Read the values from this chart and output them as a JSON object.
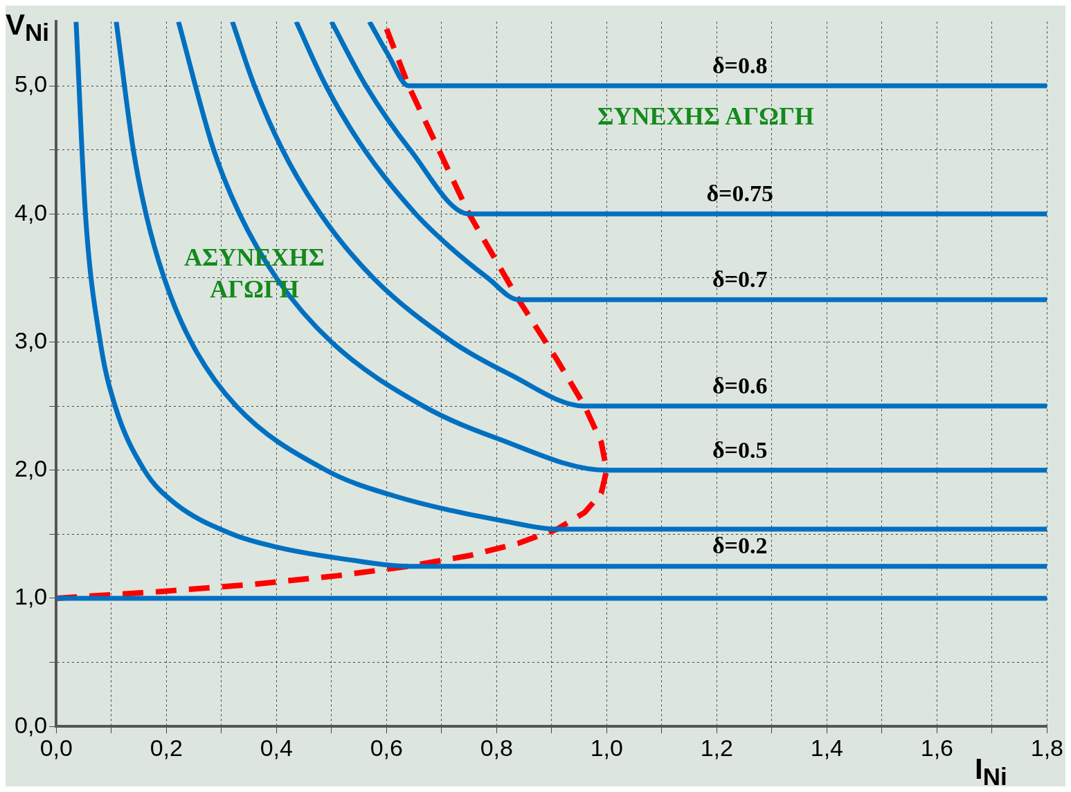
{
  "chart_data": {
    "type": "line",
    "xlabel": "I$_{Ni}$",
    "ylabel": "V$_{Ni}$",
    "xlim": [
      0,
      1.8
    ],
    "ylim": [
      0,
      5.5
    ],
    "xticks": [
      {
        "value": 0,
        "label": "0,0"
      },
      {
        "value": 0.1,
        "label": null
      },
      {
        "value": 0.2,
        "label": "0,2"
      },
      {
        "value": 0.3,
        "label": null
      },
      {
        "value": 0.4,
        "label": "0,4"
      },
      {
        "value": 0.5,
        "label": null
      },
      {
        "value": 0.6,
        "label": "0,6"
      },
      {
        "value": 0.7,
        "label": null
      },
      {
        "value": 0.8,
        "label": "0,8"
      },
      {
        "value": 0.9,
        "label": null
      },
      {
        "value": 1.0,
        "label": "1,0"
      },
      {
        "value": 1.1,
        "label": null
      },
      {
        "value": 1.2,
        "label": "1,2"
      },
      {
        "value": 1.3,
        "label": null
      },
      {
        "value": 1.4,
        "label": "1,4"
      },
      {
        "value": 1.5,
        "label": null
      },
      {
        "value": 1.6,
        "label": "1,6"
      },
      {
        "value": 1.7,
        "label": null
      },
      {
        "value": 1.8,
        "label": "1,8"
      }
    ],
    "yticks": [
      {
        "value": 0,
        "label": "0,0"
      },
      {
        "value": 0.5,
        "label": null
      },
      {
        "value": 1,
        "label": "1,0"
      },
      {
        "value": 1.5,
        "label": null
      },
      {
        "value": 2,
        "label": "2,0"
      },
      {
        "value": 2.5,
        "label": null
      },
      {
        "value": 3,
        "label": "3,0"
      },
      {
        "value": 3.5,
        "label": null
      },
      {
        "value": 4,
        "label": "4,0"
      },
      {
        "value": 4.5,
        "label": null
      },
      {
        "value": 5,
        "label": "5,0"
      }
    ],
    "grid": true,
    "legend": false,
    "marker": "none",
    "annotations": [
      "ΣΥΝΕΧΗΣ ΑΓΩΓΗ",
      "ΑΣΥΝΕΧΗΣ ΑΓΩΓΗ"
    ],
    "series": [
      {
        "color": "#0070c0",
        "x": [
          0,
          1.8
        ],
        "values": [
          1,
          1
        ]
      },
      {
        "name": "δ=0.2",
        "color": "#0070c0",
        "x": [
          0.036,
          0.053,
          0.08,
          0.107,
          0.16,
          0.213,
          0.32,
          0.4,
          0.533,
          0.64,
          1.8
        ],
        "values": [
          5.5,
          4,
          3,
          2.5,
          2,
          1.75,
          1.5,
          1.4,
          1.3,
          1.25,
          1.25
        ]
      },
      {
        "color": "#0070c0",
        "x": [
          0.109,
          0.14,
          0.163,
          0.196,
          0.245,
          0.327,
          0.49,
          0.613,
          0.817,
          0.91,
          1.8
        ],
        "values": [
          5.5,
          4.5,
          4,
          3.5,
          3,
          2.5,
          2,
          1.8,
          1.6,
          1.54,
          1.54
        ]
      },
      {
        "name": "δ=0.5",
        "color": "#0070c0",
        "x": [
          0.222,
          0.286,
          0.333,
          0.4,
          0.5,
          0.667,
          0.8,
          1,
          1.8
        ],
        "values": [
          5.5,
          4.5,
          4,
          3.5,
          3,
          2.5,
          2.25,
          2,
          2
        ]
      },
      {
        "name": "δ=0.6",
        "color": "#0070c0",
        "x": [
          0.32,
          0.36,
          0.411,
          0.48,
          0.576,
          0.72,
          0.823,
          0.96,
          1.8
        ],
        "values": [
          5.5,
          5,
          4.5,
          4,
          3.5,
          3,
          2.75,
          2.5,
          2.5
        ]
      },
      {
        "name": "δ=0.7",
        "color": "#0070c0",
        "x": [
          0.436,
          0.49,
          0.56,
          0.653,
          0.713,
          0.784,
          0.84,
          1.8
        ],
        "values": [
          5.5,
          5,
          4.5,
          4,
          3.75,
          3.5,
          3.33,
          3.33
        ]
      },
      {
        "name": "δ=0.75",
        "color": "#0070c0",
        "x": [
          0.5,
          0.5625,
          0.643,
          0.75,
          1.8
        ],
        "values": [
          5.5,
          5,
          4.5,
          4,
          4
        ]
      },
      {
        "name": "δ=0.8",
        "color": "#0070c0",
        "x": [
          0.569,
          0.602,
          0.64,
          1.8
        ],
        "values": [
          5.5,
          5.25,
          5,
          5
        ]
      },
      {
        "color": "#ff0000",
        "line_style": "dashed",
        "x": [
          0,
          0.19,
          0.36,
          0.51,
          0.64,
          0.75,
          0.84,
          0.91,
          0.96,
          0.99,
          1,
          0.99,
          0.96,
          0.91,
          0.84,
          0.75,
          0.64,
          0.595
        ],
        "values": [
          1,
          1.053,
          1.11,
          1.176,
          1.25,
          1.333,
          1.43,
          1.54,
          1.67,
          1.82,
          2,
          2.22,
          2.5,
          2.86,
          3.33,
          4,
          5,
          5.5
        ]
      }
    ]
  }
}
